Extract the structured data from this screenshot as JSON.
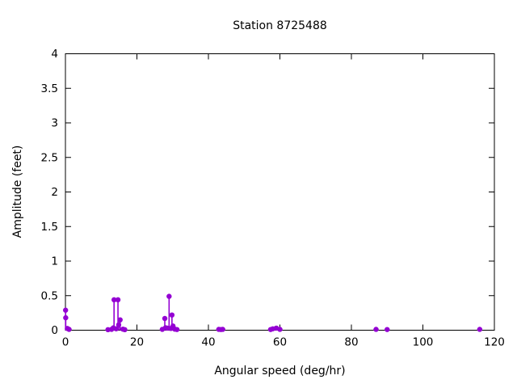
{
  "window": {
    "background": "#ffffff",
    "frame_color": "#000000",
    "text_color": "#000000"
  },
  "chart_data": {
    "type": "stem",
    "title": "Station 8725488",
    "xlabel": "Angular speed (deg/hr)",
    "ylabel": "Amplitude (feet)",
    "xlim": [
      0,
      120
    ],
    "ylim": [
      0,
      4
    ],
    "xticks": [
      0,
      20,
      40,
      60,
      80,
      100,
      120
    ],
    "yticks": [
      0,
      0.5,
      1,
      1.5,
      2,
      2.5,
      3,
      3.5,
      4
    ],
    "grid": false,
    "legend_position": "none",
    "marker": "filled-circle",
    "series_color": "#9400d3",
    "points": [
      [
        0.04,
        0.29
      ],
      [
        0.08,
        0.18
      ],
      [
        0.54,
        0.025
      ],
      [
        1.02,
        0.012
      ],
      [
        11.9,
        0.008
      ],
      [
        12.9,
        0.012
      ],
      [
        13.4,
        0.034
      ],
      [
        13.6,
        0.44
      ],
      [
        14.2,
        0.02
      ],
      [
        14.7,
        0.44
      ],
      [
        14.9,
        0.078
      ],
      [
        15.3,
        0.15
      ],
      [
        16.1,
        0.015
      ],
      [
        16.6,
        0.008
      ],
      [
        27.1,
        0.012
      ],
      [
        27.8,
        0.17
      ],
      [
        28.0,
        0.035
      ],
      [
        28.5,
        0.03
      ],
      [
        29.0,
        0.49
      ],
      [
        29.5,
        0.025
      ],
      [
        29.8,
        0.22
      ],
      [
        30.1,
        0.06
      ],
      [
        30.6,
        0.015
      ],
      [
        31.2,
        0.01
      ],
      [
        42.9,
        0.012
      ],
      [
        43.5,
        0.01
      ],
      [
        44.0,
        0.012
      ],
      [
        57.4,
        0.01
      ],
      [
        58.0,
        0.02
      ],
      [
        59.0,
        0.03
      ],
      [
        60.0,
        0.012
      ],
      [
        86.9,
        0.012
      ],
      [
        90.0,
        0.01
      ],
      [
        115.9,
        0.012
      ]
    ]
  }
}
